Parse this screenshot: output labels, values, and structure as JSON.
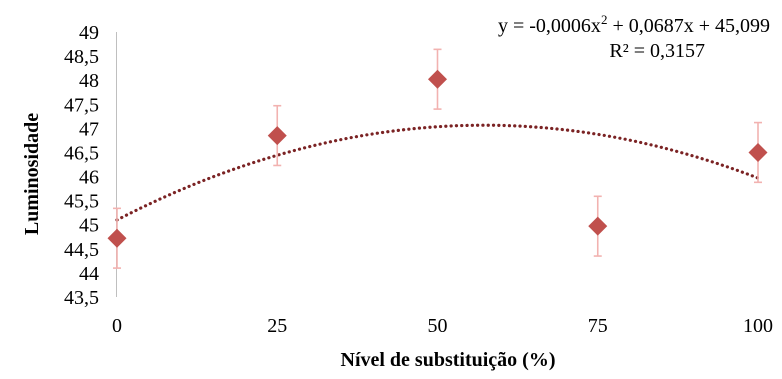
{
  "chart_data": {
    "type": "scatter",
    "xlabel": "Nível de substituição (%)",
    "ylabel": "Luminosidade",
    "x_ticks": [
      "0",
      "25",
      "50",
      "75",
      "100"
    ],
    "y_ticks": [
      "43,5",
      "44",
      "44,5",
      "45",
      "45,5",
      "46",
      "46,5",
      "47",
      "47,5",
      "48",
      "48,5",
      "49"
    ],
    "xlim": [
      0,
      100
    ],
    "ylim": [
      43.5,
      49
    ],
    "grid": false,
    "series": [
      {
        "x": [
          0,
          25,
          50,
          75,
          100
        ],
        "y": [
          44.72,
          46.85,
          48.02,
          44.97,
          46.5
        ],
        "error": [
          0.62,
          0.62,
          0.62,
          0.62,
          0.62
        ],
        "marker": "diamond",
        "color": "#c0504d",
        "error_color": "#f2b2b0"
      }
    ],
    "trendline": {
      "type": "polynomial",
      "coefficients": [
        -0.0006,
        0.0687,
        45.099
      ],
      "color": "#7b2324",
      "style": "dotted"
    },
    "equation": {
      "line1_prefix": "y = -0,0006x",
      "line1_sup": "2",
      "line1_suffix": " + 0,0687x + 45,099",
      "line2": "R² = 0,3157"
    }
  }
}
